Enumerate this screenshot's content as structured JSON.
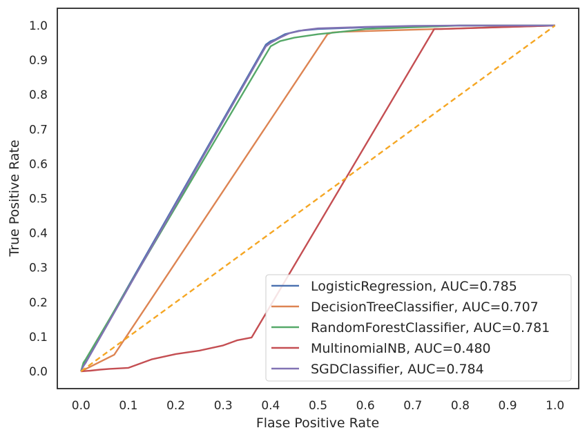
{
  "chart_data": {
    "type": "line",
    "xlabel": "Flase Positive Rate",
    "ylabel": "True Positive Rate",
    "xlim": [
      -0.05,
      1.05
    ],
    "ylim": [
      -0.05,
      1.05
    ],
    "xticks": [
      "0.0",
      "0.1",
      "0.2",
      "0.3",
      "0.4",
      "0.5",
      "0.6",
      "0.7",
      "0.8",
      "0.9",
      "1.0"
    ],
    "yticks": [
      "0.0",
      "0.1",
      "0.2",
      "0.3",
      "0.4",
      "0.5",
      "0.6",
      "0.7",
      "0.8",
      "0.9",
      "1.0"
    ],
    "grid": false,
    "legend_position": "lower right",
    "series": [
      {
        "name": "LogisticRegression, AUC=0.785",
        "color": "#4c72b0",
        "x": [
          0.0,
          0.005,
          0.01,
          0.39,
          0.4,
          0.41,
          0.43,
          0.46,
          0.5,
          0.6,
          0.7,
          0.8,
          1.0
        ],
        "y": [
          0.0,
          0.02,
          0.03,
          0.945,
          0.955,
          0.96,
          0.975,
          0.985,
          0.99,
          0.995,
          0.998,
          1.0,
          1.0
        ]
      },
      {
        "name": "DecisionTreeClassifier, AUC=0.707",
        "color": "#dd8452",
        "x": [
          0.0,
          0.07,
          0.52,
          0.53,
          0.55,
          0.75,
          1.0
        ],
        "y": [
          0.0,
          0.048,
          0.975,
          0.98,
          0.982,
          0.99,
          1.0
        ]
      },
      {
        "name": "RandomForestClassifier, AUC=0.781",
        "color": "#55a868",
        "x": [
          0.0,
          0.005,
          0.01,
          0.4,
          0.42,
          0.45,
          0.5,
          0.55,
          0.6,
          0.7,
          0.8,
          1.0
        ],
        "y": [
          0.0,
          0.025,
          0.035,
          0.94,
          0.955,
          0.965,
          0.975,
          0.982,
          0.99,
          0.995,
          1.0,
          1.0
        ]
      },
      {
        "name": "MultinomialNB, AUC=0.480",
        "color": "#c44e52",
        "x": [
          0.0,
          0.02,
          0.04,
          0.06,
          0.1,
          0.12,
          0.15,
          0.2,
          0.25,
          0.3,
          0.33,
          0.36,
          0.745,
          0.76,
          1.0
        ],
        "y": [
          0.0,
          0.002,
          0.005,
          0.007,
          0.01,
          0.02,
          0.035,
          0.05,
          0.06,
          0.075,
          0.09,
          0.098,
          0.99,
          0.99,
          1.0
        ]
      },
      {
        "name": "SGDClassifier, AUC=0.784",
        "color": "#8172b3",
        "x": [
          0.0,
          0.005,
          0.01,
          0.39,
          0.4,
          0.42,
          0.44,
          0.47,
          0.5,
          0.6,
          0.7,
          0.8,
          1.0
        ],
        "y": [
          0.0,
          0.015,
          0.025,
          0.94,
          0.95,
          0.965,
          0.978,
          0.987,
          0.992,
          0.996,
          0.999,
          1.0,
          1.0
        ]
      }
    ],
    "reference_line": {
      "x": [
        0.0,
        1.0
      ],
      "y": [
        0.0,
        1.0
      ],
      "color": "#f5a623",
      "style": "dashed"
    }
  }
}
